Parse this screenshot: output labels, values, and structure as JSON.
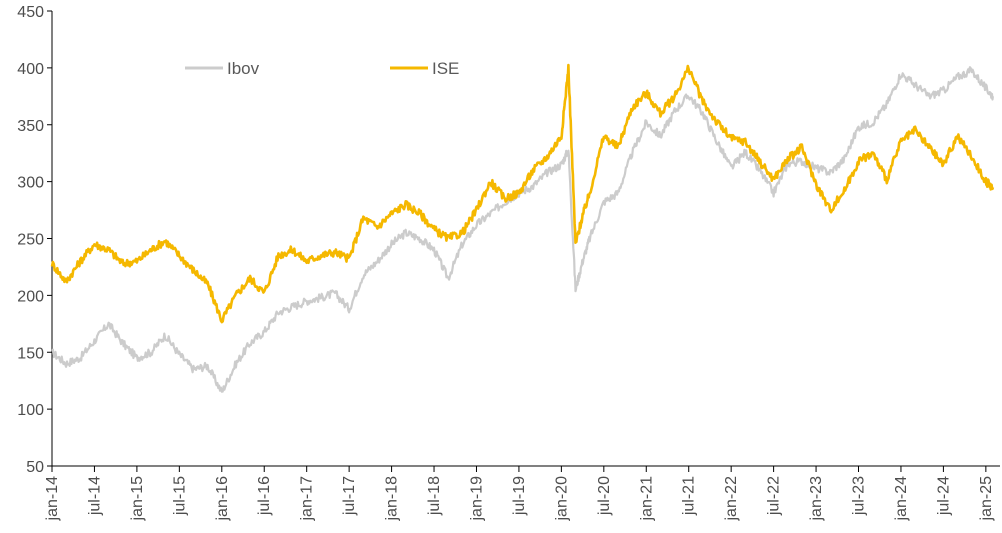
{
  "chart_data": {
    "type": "line",
    "title": "",
    "xlabel": "",
    "ylabel": "",
    "ylim": [
      50,
      450
    ],
    "y_ticks": [
      50,
      100,
      150,
      200,
      250,
      300,
      350,
      400,
      450
    ],
    "x_ticks": [
      "jan-14",
      "jul-14",
      "jan-15",
      "jul-15",
      "jan-16",
      "jul-16",
      "jan-17",
      "jul-17",
      "jan-18",
      "jul-18",
      "jan-19",
      "jul-19",
      "jan-20",
      "jul-20",
      "jan-21",
      "jul-21",
      "jan-22",
      "jul-22",
      "jan-23",
      "jul-23",
      "jan-24",
      "jul-24",
      "jan-25"
    ],
    "grid": false,
    "legend_position": "top-left",
    "series": [
      {
        "name": "Ibov",
        "color": "#cccccc",
        "dates": [
          "2014-01",
          "2014-03",
          "2014-05",
          "2014-07",
          "2014-09",
          "2014-11",
          "2015-01",
          "2015-03",
          "2015-05",
          "2015-07",
          "2015-09",
          "2015-11",
          "2016-01",
          "2016-03",
          "2016-05",
          "2016-07",
          "2016-09",
          "2016-11",
          "2017-01",
          "2017-03",
          "2017-05",
          "2017-07",
          "2017-09",
          "2017-11",
          "2018-01",
          "2018-03",
          "2018-05",
          "2018-07",
          "2018-09",
          "2018-11",
          "2019-01",
          "2019-03",
          "2019-05",
          "2019-07",
          "2019-09",
          "2019-11",
          "2020-01",
          "2020-02",
          "2020-03",
          "2020-04",
          "2020-05",
          "2020-07",
          "2020-09",
          "2020-11",
          "2021-01",
          "2021-03",
          "2021-05",
          "2021-07",
          "2021-09",
          "2021-11",
          "2022-01",
          "2022-03",
          "2022-05",
          "2022-07",
          "2022-09",
          "2022-11",
          "2023-01",
          "2023-03",
          "2023-05",
          "2023-07",
          "2023-09",
          "2023-11",
          "2024-01",
          "2024-03",
          "2024-05",
          "2024-07",
          "2024-09",
          "2024-11",
          "2025-01",
          "2025-02"
        ],
        "values": [
          150,
          140,
          145,
          160,
          175,
          158,
          145,
          150,
          165,
          148,
          135,
          138,
          115,
          140,
          158,
          168,
          185,
          190,
          195,
          198,
          202,
          188,
          218,
          230,
          245,
          255,
          250,
          240,
          215,
          245,
          262,
          272,
          282,
          290,
          296,
          308,
          315,
          328,
          205,
          230,
          250,
          282,
          290,
          325,
          352,
          340,
          362,
          376,
          360,
          335,
          312,
          326,
          310,
          290,
          316,
          318,
          312,
          308,
          320,
          348,
          352,
          368,
          395,
          385,
          375,
          380,
          392,
          398,
          382,
          375
        ]
      },
      {
        "name": "ISE",
        "color": "#f5b800",
        "dates": [
          "2014-01",
          "2014-03",
          "2014-05",
          "2014-07",
          "2014-09",
          "2014-11",
          "2015-01",
          "2015-03",
          "2015-05",
          "2015-07",
          "2015-09",
          "2015-11",
          "2016-01",
          "2016-03",
          "2016-05",
          "2016-07",
          "2016-09",
          "2016-11",
          "2017-01",
          "2017-03",
          "2017-05",
          "2017-07",
          "2017-09",
          "2017-11",
          "2018-01",
          "2018-03",
          "2018-05",
          "2018-07",
          "2018-09",
          "2018-11",
          "2019-01",
          "2019-03",
          "2019-05",
          "2019-07",
          "2019-09",
          "2019-11",
          "2020-01",
          "2020-02",
          "2020-03",
          "2020-04",
          "2020-05",
          "2020-07",
          "2020-09",
          "2020-11",
          "2021-01",
          "2021-03",
          "2021-05",
          "2021-07",
          "2021-09",
          "2021-11",
          "2022-01",
          "2022-03",
          "2022-05",
          "2022-07",
          "2022-09",
          "2022-11",
          "2023-01",
          "2023-03",
          "2023-05",
          "2023-07",
          "2023-09",
          "2023-11",
          "2024-01",
          "2024-03",
          "2024-05",
          "2024-07",
          "2024-09",
          "2024-11",
          "2025-01",
          "2025-02"
        ],
        "values": [
          228,
          212,
          230,
          245,
          240,
          228,
          230,
          240,
          248,
          235,
          222,
          210,
          178,
          200,
          215,
          202,
          235,
          240,
          230,
          235,
          238,
          232,
          268,
          260,
          272,
          280,
          272,
          258,
          250,
          255,
          275,
          300,
          285,
          290,
          310,
          322,
          340,
          400,
          245,
          270,
          290,
          340,
          330,
          365,
          378,
          360,
          375,
          400,
          370,
          352,
          338,
          335,
          318,
          302,
          320,
          330,
          298,
          275,
          292,
          318,
          325,
          302,
          335,
          345,
          330,
          315,
          340,
          322,
          300,
          295
        ]
      }
    ]
  }
}
